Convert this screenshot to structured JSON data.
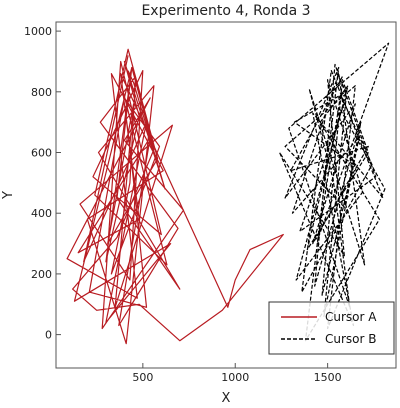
{
  "chart_data": {
    "type": "line",
    "title": "Experimento 4, Ronda 3",
    "xlabel": "X",
    "ylabel": "Y",
    "xlim": [
      30,
      1870
    ],
    "ylim": [
      -110,
      1030
    ],
    "xticks": [
      500,
      1000,
      1500
    ],
    "yticks": [
      0,
      200,
      400,
      600,
      800,
      1000
    ],
    "legend_position": "bottom-right",
    "series": [
      {
        "name": "Cursor A",
        "color": "#b81c22",
        "dash": "solid",
        "x": [
          420,
          180,
          520,
          300,
          650,
          130,
          440,
          360,
          700,
          260,
          560,
          410,
          200,
          610,
          330,
          470,
          90,
          540,
          400,
          720,
          280,
          380,
          600,
          230,
          500,
          430,
          160,
          660,
          350,
          450,
          310,
          580,
          420,
          240,
          630,
          390,
          480,
          150,
          540,
          370,
          690,
          270,
          460,
          430,
          330,
          590,
          400,
          210,
          520,
          440,
          380,
          960,
          1000,
          1080,
          1260,
          930,
          700,
          480,
          250,
          120,
          360,
          560,
          440,
          300,
          480,
          400,
          620,
          450,
          420
        ],
        "y": [
          920,
          240,
          700,
          40,
          300,
          110,
          880,
          450,
          150,
          600,
          820,
          -30,
          380,
          540,
          860,
          120,
          250,
          780,
          640,
          410,
          20,
          900,
          330,
          520,
          870,
          180,
          430,
          690,
          90,
          760,
          300,
          580,
          940,
          460,
          230,
          810,
          380,
          270,
          650,
          30,
          350,
          700,
          850,
          500,
          200,
          620,
          780,
          140,
          90,
          560,
          860,
          90,
          180,
          280,
          330,
          80,
          -20,
          100,
          80,
          150,
          320,
          610,
          880,
          240,
          720,
          900,
          480,
          830,
          870
        ]
      },
      {
        "name": "Cursor B",
        "color": "#000000",
        "dash": "dashed",
        "x": [
          1580,
          1300,
          1720,
          1420,
          1650,
          1270,
          1560,
          1380,
          1780,
          1460,
          1610,
          1330,
          1690,
          1500,
          1590,
          1240,
          1640,
          1420,
          1800,
          1520,
          1360,
          1740,
          1570,
          1450,
          1830,
          1290,
          1620,
          1530,
          1400,
          1700,
          1560,
          1310,
          1670,
          1480,
          1600,
          1350,
          1760,
          1540,
          1430,
          1680,
          1590,
          1270,
          1650,
          1500,
          1810,
          1570,
          1390,
          1720,
          1580,
          1470,
          1640,
          1320,
          1600,
          1550
        ],
        "y": [
          850,
          540,
          620,
          300,
          760,
          450,
          880,
          -20,
          380,
          700,
          820,
          180,
          470,
          840,
          260,
          600,
          30,
          730,
          450,
          870,
          140,
          560,
          790,
          320,
          960,
          680,
          90,
          510,
          810,
          230,
          860,
          400,
          650,
          60,
          780,
          340,
          520,
          890,
          160,
          700,
          420,
          620,
          820,
          20,
          480,
          740,
          280,
          600,
          840,
          130,
          560,
          700,
          800,
          860
        ]
      }
    ]
  }
}
